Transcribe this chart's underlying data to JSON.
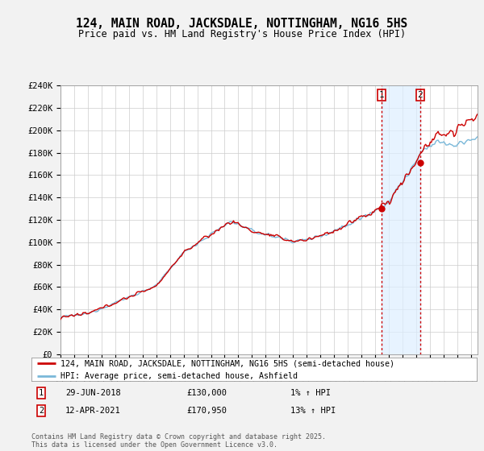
{
  "title": "124, MAIN ROAD, JACKSDALE, NOTTINGHAM, NG16 5HS",
  "subtitle": "Price paid vs. HM Land Registry's House Price Index (HPI)",
  "hpi_label": "HPI: Average price, semi-detached house, Ashfield",
  "property_label": "124, MAIN ROAD, JACKSDALE, NOTTINGHAM, NG16 5HS (semi-detached house)",
  "footer": "Contains HM Land Registry data © Crown copyright and database right 2025.\nThis data is licensed under the Open Government Licence v3.0.",
  "sale1_date": "29-JUN-2018",
  "sale1_price": "£130,000",
  "sale1_hpi": "1% ↑ HPI",
  "sale2_date": "12-APR-2021",
  "sale2_price": "£170,950",
  "sale2_hpi": "13% ↑ HPI",
  "ylim": [
    0,
    240000
  ],
  "yticks": [
    0,
    20000,
    40000,
    60000,
    80000,
    100000,
    120000,
    140000,
    160000,
    180000,
    200000,
    220000,
    240000
  ],
  "ytick_labels": [
    "£0",
    "£20K",
    "£40K",
    "£60K",
    "£80K",
    "£100K",
    "£120K",
    "£140K",
    "£160K",
    "£180K",
    "£200K",
    "£220K",
    "£240K"
  ],
  "background_color": "#f2f2f2",
  "plot_bg_color": "#ffffff",
  "hpi_color": "#7ab8d9",
  "price_color": "#cc0000",
  "vline_color": "#cc0000",
  "sale1_x": 2018.49,
  "sale2_x": 2021.28,
  "sale1_y": 130000,
  "sale2_y": 170950,
  "xmin": 1995.0,
  "xmax": 2025.5,
  "xtick_years": [
    1995,
    1996,
    1997,
    1998,
    1999,
    2000,
    2001,
    2002,
    2003,
    2004,
    2005,
    2006,
    2007,
    2008,
    2009,
    2010,
    2011,
    2012,
    2013,
    2014,
    2015,
    2016,
    2017,
    2018,
    2019,
    2020,
    2021,
    2022,
    2023,
    2024,
    2025
  ]
}
